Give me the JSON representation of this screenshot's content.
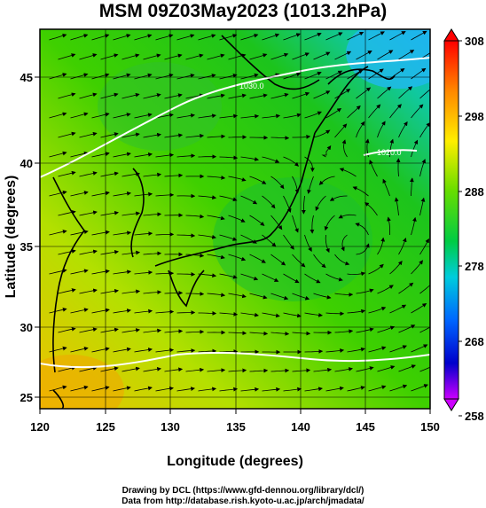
{
  "title": "MSM 09Z03May2023 (1013.2hPa)",
  "xlabel": "Longitude (degrees)",
  "ylabel": "Latitude  (degrees)",
  "x_ticks": [
    "120",
    "125",
    "130",
    "135",
    "140",
    "145",
    "150"
  ],
  "y_ticks": [
    "45",
    "40",
    "35",
    "30",
    "25"
  ],
  "colorbar": {
    "ticks": [
      "308",
      "298",
      "288",
      "278",
      "268",
      "258"
    ],
    "colors": [
      "#ff0000",
      "#ffaa00",
      "#ffff00",
      "#22cc00",
      "#00ccdd",
      "#0044ff",
      "#0000cc",
      "#cc00ff"
    ]
  },
  "contour_labels": [
    "1030.0",
    "1020.0"
  ],
  "footer_lines": [
    "Drawing by DCL (https://www.gfd-dennou.org/library/dcl/)",
    "Data from http://database.rish.kyoto-u.ac.jp/arch/jmadata/"
  ]
}
